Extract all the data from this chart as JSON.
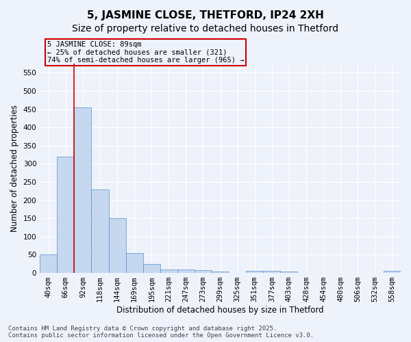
{
  "title": "5, JASMINE CLOSE, THETFORD, IP24 2XH",
  "subtitle": "Size of property relative to detached houses in Thetford",
  "xlabel": "Distribution of detached houses by size in Thetford",
  "ylabel": "Number of detached properties",
  "categories": [
    "40sqm",
    "66sqm",
    "92sqm",
    "118sqm",
    "144sqm",
    "169sqm",
    "195sqm",
    "221sqm",
    "247sqm",
    "273sqm",
    "299sqm",
    "325sqm",
    "351sqm",
    "377sqm",
    "403sqm",
    "428sqm",
    "454sqm",
    "480sqm",
    "506sqm",
    "532sqm",
    "558sqm"
  ],
  "values": [
    50,
    320,
    455,
    230,
    150,
    55,
    25,
    10,
    10,
    8,
    3,
    0,
    6,
    6,
    3,
    0,
    0,
    0,
    0,
    0,
    5
  ],
  "bar_color": "#c5d8f0",
  "bar_edge_color": "#5b8fc9",
  "property_line_x": 1.5,
  "annotation_line1": "5 JASMINE CLOSE: 89sqm",
  "annotation_line2": "← 25% of detached houses are smaller (321)",
  "annotation_line3": "74% of semi-detached houses are larger (965) →",
  "annotation_box_color": "#cc0000",
  "background_color": "#eef2fb",
  "grid_color": "#ffffff",
  "footer_line1": "Contains HM Land Registry data © Crown copyright and database right 2025.",
  "footer_line2": "Contains public sector information licensed under the Open Government Licence v3.0.",
  "ylim": [
    0,
    575
  ],
  "yticks": [
    0,
    50,
    100,
    150,
    200,
    250,
    300,
    350,
    400,
    450,
    500,
    550
  ],
  "title_fontsize": 11,
  "xlabel_fontsize": 8.5,
  "ylabel_fontsize": 8.5,
  "tick_fontsize": 7.5,
  "annotation_fontsize": 7.5,
  "footer_fontsize": 6.5
}
